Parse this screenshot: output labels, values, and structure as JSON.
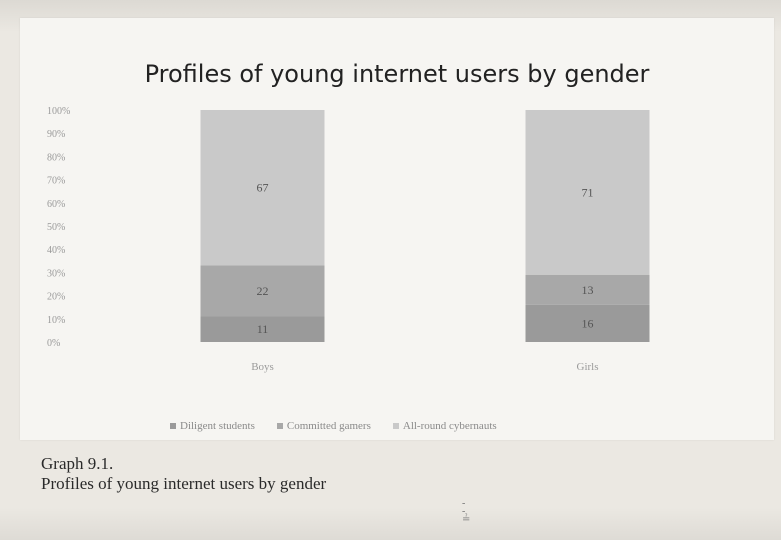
{
  "chart_data": {
    "type": "bar",
    "stacked": true,
    "title": "Profiles of young internet users by gender",
    "categories": [
      "Boys",
      "Girls"
    ],
    "series": [
      {
        "name": "Diligent students",
        "values": [
          11,
          16
        ],
        "color": "#9a9a9a"
      },
      {
        "name": "Committed gamers",
        "values": [
          22,
          13
        ],
        "color": "#a8a8a8"
      },
      {
        "name": "All-round cybernauts",
        "values": [
          67,
          71
        ],
        "color": "#c9c9c9"
      }
    ],
    "yaxis": {
      "ticks": [
        "0%",
        "10%",
        "20%",
        "30%",
        "40%",
        "50%",
        "60%",
        "70%",
        "80%",
        "90%",
        "100%"
      ],
      "ylim": [
        0,
        100
      ],
      "format": "percent"
    },
    "legend_position": "bottom",
    "grid": false
  },
  "caption": {
    "line1": "Graph 9.1.",
    "line2": "Profiles of young internet users by gender"
  }
}
